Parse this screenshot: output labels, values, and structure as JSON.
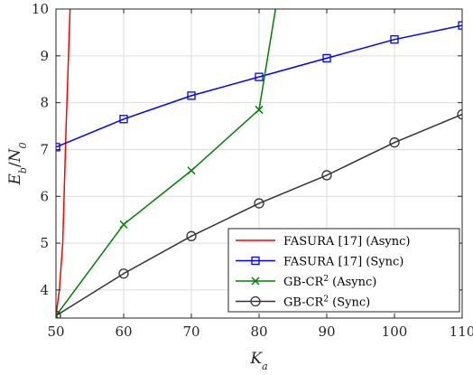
{
  "chart_data": {
    "type": "line",
    "xlabel": "K_a",
    "ylabel": "E_b/N_0",
    "xlim": [
      50,
      110
    ],
    "ylim": [
      3.4,
      10
    ],
    "xticks": [
      50,
      60,
      70,
      80,
      90,
      100,
      110
    ],
    "yticks": [
      4,
      5,
      6,
      7,
      8,
      9,
      10
    ],
    "grid": true,
    "legend_position": "bottom-right",
    "series": [
      {
        "name": "FASURA [17] (Async)",
        "legend_parts": [
          "FASURA [17] (Async)",
          "",
          ""
        ],
        "color": "#ff0000",
        "marker": "none",
        "x": [
          50,
          50.5,
          51,
          51.5,
          52.2
        ],
        "y": [
          3.45,
          4.0,
          5.0,
          7.5,
          10.5
        ]
      },
      {
        "name": "FASURA [17] (Sync)",
        "legend_parts": [
          "FASURA [17] (Sync)",
          "",
          ""
        ],
        "color": "#0000ff",
        "marker": "square",
        "x": [
          50,
          60,
          70,
          80,
          90,
          100,
          110
        ],
        "y": [
          7.05,
          7.65,
          8.15,
          8.55,
          8.95,
          9.35,
          9.65
        ]
      },
      {
        "name": "GB-CR2 (Async)",
        "legend_parts": [
          "GB-CR",
          "2",
          " (Async)"
        ],
        "color": "#008000",
        "marker": "x",
        "x": [
          50,
          60,
          70,
          80,
          83
        ],
        "y": [
          3.45,
          5.4,
          6.55,
          7.85,
          10.5
        ]
      },
      {
        "name": "GB-CR2 (Sync)",
        "legend_parts": [
          "GB-CR",
          "2",
          " (Sync)"
        ],
        "color": "#333333",
        "marker": "circle",
        "x": [
          50,
          60,
          70,
          80,
          90,
          100,
          110
        ],
        "y": [
          3.45,
          4.35,
          5.15,
          5.85,
          6.45,
          7.15,
          7.75
        ]
      }
    ]
  }
}
